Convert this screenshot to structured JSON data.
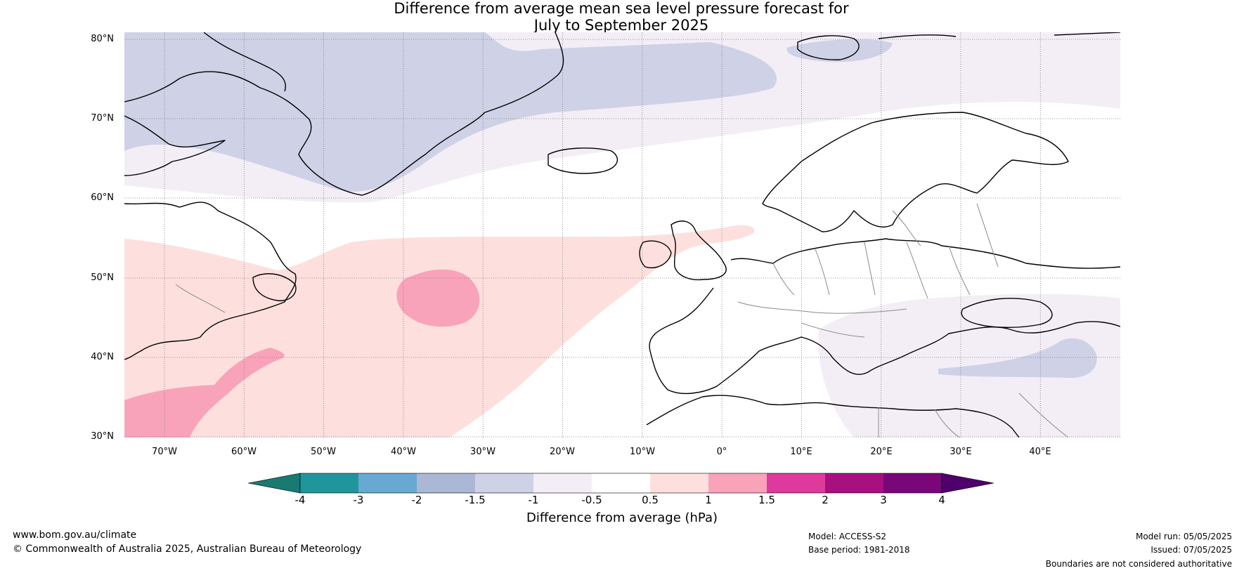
{
  "title": {
    "line1": "Difference from average mean sea level pressure forecast for",
    "line2": "July to September 2025"
  },
  "map": {
    "region": "North Atlantic and Europe",
    "lat_labels": [
      "80°N",
      "70°N",
      "60°N",
      "50°N",
      "40°N",
      "30°N"
    ],
    "lon_labels": [
      "70°W",
      "60°W",
      "50°W",
      "40°W",
      "30°W",
      "20°W",
      "10°W",
      "0°",
      "10°E",
      "20°E",
      "30°E",
      "40°E"
    ],
    "anomaly_colors": {
      "minus_1_5_to_minus_1": "#cfd1e6",
      "minus_1_to_minus_0_5": "#f3eef6",
      "plus_0_5_to_1": "#fde0de",
      "plus_1_to_1_5": "#f9a3ba"
    }
  },
  "colorbar": {
    "label": "Difference from average (hPa)",
    "ticks": [
      "-4",
      "-3",
      "-2",
      "-1.5",
      "-1",
      "-0.5",
      "0.5",
      "1",
      "1.5",
      "2",
      "3",
      "4"
    ],
    "colors": [
      "#197a71",
      "#21959c",
      "#67a9d1",
      "#aab7d5",
      "#cfd1e6",
      "#f3eef6",
      "#ffffff",
      "#fde0de",
      "#f9a3ba",
      "#dd3a9b",
      "#a80f7f",
      "#7a0779",
      "#4e016c"
    ]
  },
  "footer": {
    "website": "www.bom.gov.au/climate",
    "copyright": "© Commonwealth of Australia 2025, Australian Bureau of Meteorology",
    "model": "Model: ACCESS-S2",
    "base_period": "Base period: 1981-2018",
    "model_run": "Model run: 05/05/2025",
    "issued": "Issued: 07/05/2025",
    "disclaimer": "Boundaries are not considered authoritative"
  }
}
